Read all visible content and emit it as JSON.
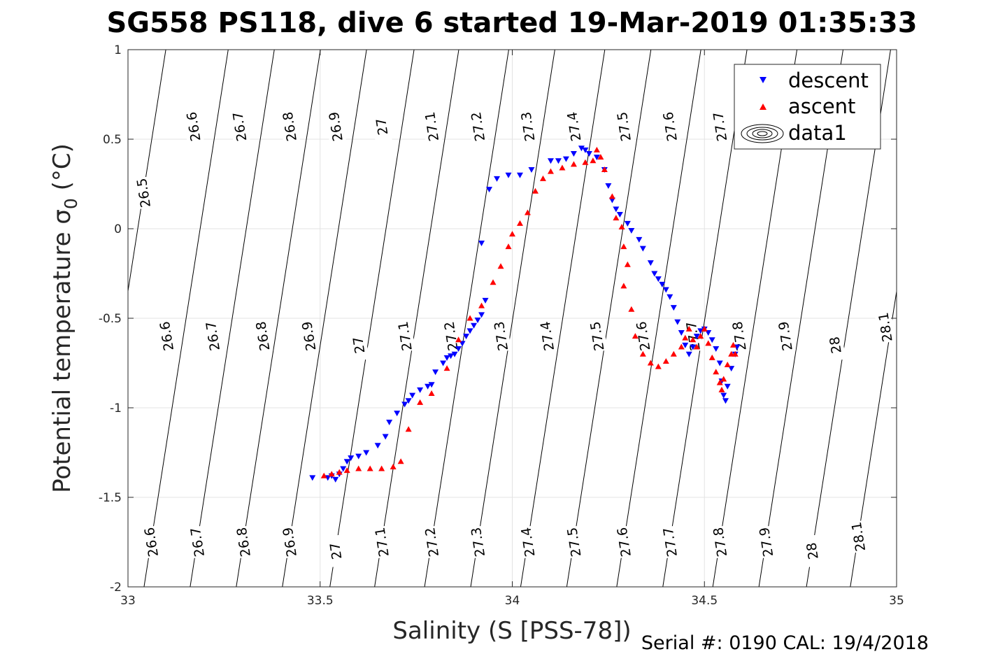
{
  "title": "SG558 PS118, dive 6 started 19-Mar-2019 01:35:33",
  "footer": "Serial #: 0190  CAL: 19/4/2018",
  "chart_data": {
    "type": "scatter",
    "title": "SG558 PS118, dive 6 started 19-Mar-2019 01:35:33",
    "xlabel": "Salinity (S [PSS-78])",
    "ylabel": "Potential temperature σ",
    "ylabel_sub": "0",
    "ylabel_suffix": " (°C)",
    "xlim": [
      33,
      35
    ],
    "ylim": [
      -2,
      1
    ],
    "x_ticks": [
      33,
      33.5,
      34,
      34.5,
      35
    ],
    "x_tick_labels": [
      "33",
      "33.5",
      "34",
      "34.5",
      "35"
    ],
    "y_ticks": [
      -2,
      -1.5,
      -1,
      -0.5,
      0,
      0.5,
      1
    ],
    "y_tick_labels": [
      "-2",
      "-1.5",
      "-1",
      "-0.5",
      "0",
      "0.5",
      "1"
    ],
    "grid": true,
    "legend_position": "top-right",
    "series": [
      {
        "name": "descent",
        "color": "#0000ff",
        "marker": "triangle-down",
        "points": [
          [
            33.48,
            -1.39
          ],
          [
            33.52,
            -1.39
          ],
          [
            33.53,
            -1.38
          ],
          [
            33.54,
            -1.4
          ],
          [
            33.55,
            -1.37
          ],
          [
            33.56,
            -1.34
          ],
          [
            33.57,
            -1.3
          ],
          [
            33.58,
            -1.28
          ],
          [
            33.6,
            -1.27
          ],
          [
            33.62,
            -1.25
          ],
          [
            33.65,
            -1.21
          ],
          [
            33.67,
            -1.16
          ],
          [
            33.68,
            -1.08
          ],
          [
            33.7,
            -1.03
          ],
          [
            33.72,
            -0.98
          ],
          [
            33.73,
            -0.96
          ],
          [
            33.74,
            -0.93
          ],
          [
            33.76,
            -0.9
          ],
          [
            33.78,
            -0.88
          ],
          [
            33.79,
            -0.87
          ],
          [
            33.8,
            -0.8
          ],
          [
            33.82,
            -0.75
          ],
          [
            33.83,
            -0.72
          ],
          [
            33.84,
            -0.71
          ],
          [
            33.85,
            -0.7
          ],
          [
            33.86,
            -0.67
          ],
          [
            33.87,
            -0.64
          ],
          [
            33.88,
            -0.6
          ],
          [
            33.89,
            -0.57
          ],
          [
            33.9,
            -0.54
          ],
          [
            33.91,
            -0.51
          ],
          [
            33.92,
            -0.48
          ],
          [
            33.93,
            -0.4
          ],
          [
            33.92,
            -0.08
          ],
          [
            33.94,
            0.22
          ],
          [
            33.96,
            0.28
          ],
          [
            33.99,
            0.3
          ],
          [
            34.02,
            0.3
          ],
          [
            34.05,
            0.33
          ],
          [
            34.1,
            0.38
          ],
          [
            34.12,
            0.38
          ],
          [
            34.14,
            0.39
          ],
          [
            34.16,
            0.42
          ],
          [
            34.18,
            0.45
          ],
          [
            34.19,
            0.44
          ],
          [
            34.2,
            0.42
          ],
          [
            34.22,
            0.4
          ],
          [
            34.24,
            0.33
          ],
          [
            34.25,
            0.24
          ],
          [
            34.26,
            0.16
          ],
          [
            34.27,
            0.11
          ],
          [
            34.28,
            0.08
          ],
          [
            34.3,
            0.03
          ],
          [
            34.31,
            -0.01
          ],
          [
            34.33,
            -0.06
          ],
          [
            34.34,
            -0.11
          ],
          [
            34.36,
            -0.19
          ],
          [
            34.37,
            -0.25
          ],
          [
            34.38,
            -0.28
          ],
          [
            34.39,
            -0.31
          ],
          [
            34.4,
            -0.34
          ],
          [
            34.41,
            -0.38
          ],
          [
            34.42,
            -0.44
          ],
          [
            34.43,
            -0.52
          ],
          [
            34.44,
            -0.58
          ],
          [
            34.45,
            -0.65
          ],
          [
            34.46,
            -0.7
          ],
          [
            34.47,
            -0.66
          ],
          [
            34.48,
            -0.6
          ],
          [
            34.49,
            -0.57
          ],
          [
            34.5,
            -0.56
          ],
          [
            34.51,
            -0.58
          ],
          [
            34.52,
            -0.62
          ],
          [
            34.53,
            -0.67
          ],
          [
            34.54,
            -0.75
          ],
          [
            34.545,
            -0.85
          ],
          [
            34.55,
            -0.93
          ],
          [
            34.555,
            -0.96
          ],
          [
            34.56,
            -0.88
          ],
          [
            34.57,
            -0.78
          ],
          [
            34.58,
            -0.7
          ],
          [
            34.585,
            -0.66
          ]
        ]
      },
      {
        "name": "ascent",
        "color": "#ff0000",
        "marker": "triangle-up",
        "points": [
          [
            33.51,
            -1.38
          ],
          [
            33.53,
            -1.37
          ],
          [
            33.55,
            -1.36
          ],
          [
            33.57,
            -1.35
          ],
          [
            33.6,
            -1.34
          ],
          [
            33.63,
            -1.34
          ],
          [
            33.66,
            -1.34
          ],
          [
            33.69,
            -1.33
          ],
          [
            33.71,
            -1.3
          ],
          [
            33.73,
            -1.12
          ],
          [
            33.76,
            -0.97
          ],
          [
            33.79,
            -0.92
          ],
          [
            33.83,
            -0.78
          ],
          [
            33.86,
            -0.62
          ],
          [
            33.89,
            -0.5
          ],
          [
            33.92,
            -0.43
          ],
          [
            33.95,
            -0.3
          ],
          [
            33.97,
            -0.21
          ],
          [
            33.99,
            -0.1
          ],
          [
            34.0,
            -0.03
          ],
          [
            34.02,
            0.03
          ],
          [
            34.04,
            0.09
          ],
          [
            34.06,
            0.21
          ],
          [
            34.08,
            0.28
          ],
          [
            34.1,
            0.32
          ],
          [
            34.13,
            0.34
          ],
          [
            34.16,
            0.36
          ],
          [
            34.19,
            0.37
          ],
          [
            34.21,
            0.38
          ],
          [
            34.22,
            0.44
          ],
          [
            34.23,
            0.4
          ],
          [
            34.24,
            0.33
          ],
          [
            34.26,
            0.18
          ],
          [
            34.27,
            0.06
          ],
          [
            34.285,
            0.01
          ],
          [
            34.29,
            -0.1
          ],
          [
            34.3,
            -0.2
          ],
          [
            34.29,
            -0.32
          ],
          [
            34.31,
            -0.45
          ],
          [
            34.32,
            -0.6
          ],
          [
            34.34,
            -0.7
          ],
          [
            34.36,
            -0.75
          ],
          [
            34.38,
            -0.77
          ],
          [
            34.4,
            -0.74
          ],
          [
            34.42,
            -0.7
          ],
          [
            34.44,
            -0.66
          ],
          [
            34.45,
            -0.61
          ],
          [
            34.46,
            -0.56
          ],
          [
            34.47,
            -0.62
          ],
          [
            34.48,
            -0.66
          ],
          [
            34.49,
            -0.6
          ],
          [
            34.5,
            -0.56
          ],
          [
            34.51,
            -0.64
          ],
          [
            34.52,
            -0.72
          ],
          [
            34.53,
            -0.8
          ],
          [
            34.54,
            -0.86
          ],
          [
            34.545,
            -0.9
          ],
          [
            34.55,
            -0.84
          ],
          [
            34.56,
            -0.76
          ],
          [
            34.57,
            -0.7
          ],
          [
            34.575,
            -0.65
          ],
          [
            34.58,
            -0.7
          ]
        ]
      }
    ],
    "legend_entries": [
      "descent",
      "ascent",
      "data1"
    ],
    "density_contours": {
      "name": "data1",
      "color": "#000000",
      "label_groups": [
        {
          "name": "bottom",
          "levels": [
            [
              "26.6",
              33.06,
              -1.75
            ],
            [
              "26.7",
              33.18,
              -1.75
            ],
            [
              "26.8",
              33.3,
              -1.75
            ],
            [
              "26.9",
              33.42,
              -1.75
            ],
            [
              "27",
              33.54,
              -1.8
            ],
            [
              "27.1",
              33.66,
              -1.75
            ],
            [
              "27.2",
              33.79,
              -1.75
            ],
            [
              "27.3",
              33.91,
              -1.75
            ],
            [
              "27.4",
              34.04,
              -1.75
            ],
            [
              "27.5",
              34.16,
              -1.75
            ],
            [
              "27.6",
              34.29,
              -1.75
            ],
            [
              "27.7",
              34.41,
              -1.75
            ],
            [
              "27.8",
              34.54,
              -1.75
            ],
            [
              "27.9",
              34.66,
              -1.75
            ],
            [
              "28",
              34.78,
              -1.8
            ],
            [
              "28.1",
              34.9,
              -1.72
            ]
          ]
        },
        {
          "name": "middle",
          "levels": [
            [
              "26.6",
              33.1,
              -0.6
            ],
            [
              "26.7",
              33.22,
              -0.6
            ],
            [
              "26.8",
              33.35,
              -0.6
            ],
            [
              "26.9",
              33.47,
              -0.6
            ],
            [
              "27",
              33.6,
              -0.65
            ],
            [
              "27.1",
              33.72,
              -0.6
            ],
            [
              "27.2",
              33.84,
              -0.6
            ],
            [
              "27.3",
              33.97,
              -0.6
            ],
            [
              "27.4",
              34.09,
              -0.6
            ],
            [
              "27.5",
              34.22,
              -0.6
            ],
            [
              "27.6",
              34.34,
              -0.6
            ],
            [
              "27.7",
              34.47,
              -0.6
            ],
            [
              "27.8",
              34.59,
              -0.6
            ],
            [
              "27.9",
              34.71,
              -0.6
            ],
            [
              "28",
              34.84,
              -0.65
            ],
            [
              "28.1",
              34.97,
              -0.55
            ]
          ]
        },
        {
          "name": "top",
          "levels": [
            [
              "26.5",
              33.04,
              0.2
            ],
            [
              "26.6",
              33.17,
              0.57
            ],
            [
              "26.7",
              33.29,
              0.57
            ],
            [
              "26.8",
              33.42,
              0.57
            ],
            [
              "26.9",
              33.54,
              0.57
            ],
            [
              "27",
              33.66,
              0.57
            ],
            [
              "27.1",
              33.79,
              0.57
            ],
            [
              "27.2",
              33.91,
              0.57
            ],
            [
              "27.3",
              34.04,
              0.57
            ],
            [
              "27.4",
              34.16,
              0.57
            ],
            [
              "27.5",
              34.29,
              0.57
            ],
            [
              "27.6",
              34.41,
              0.57
            ],
            [
              "27.7",
              34.54,
              0.57
            ]
          ]
        }
      ]
    }
  }
}
